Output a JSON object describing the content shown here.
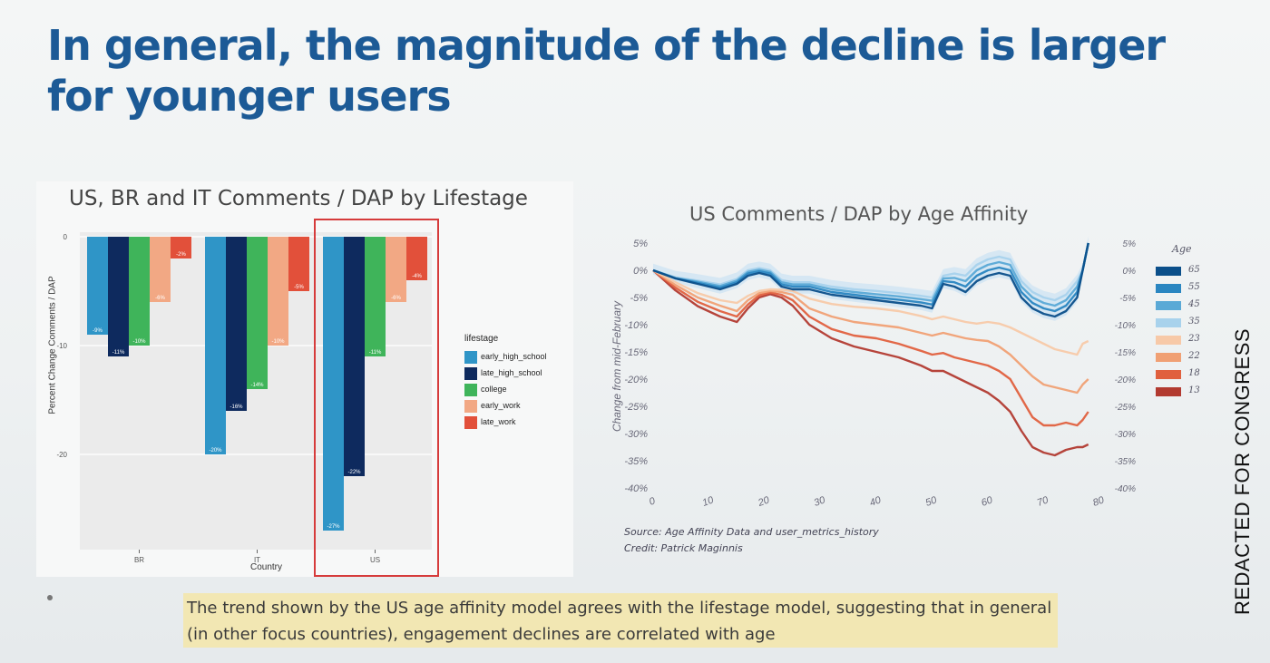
{
  "slide": {
    "title": "In general, the magnitude of the decline is larger for younger users",
    "caption": "The trend shown by the US age affinity model agrees with the lifestage model, suggesting that in general (in other focus countries), engagement declines are correlated with age",
    "watermark": "REDACTED FOR CONGRESS"
  },
  "chart_data": [
    {
      "type": "bar",
      "title": "US, BR and IT Comments / DAP by Lifestage",
      "xlabel": "Country",
      "ylabel": "Percent Change Comments / DAP",
      "categories": [
        "BR",
        "IT",
        "US"
      ],
      "ylim": [
        -27.5,
        0
      ],
      "yticks": [
        0,
        -10,
        -20
      ],
      "legend_title": "lifestage",
      "series": [
        {
          "name": "early_high_school",
          "color": "#2f95c7",
          "values": [
            -9,
            -20,
            -27
          ],
          "labels": [
            "-9%",
            "-20%",
            "-27%"
          ]
        },
        {
          "name": "late_high_school",
          "color": "#0e2a5e",
          "values": [
            -11,
            -16,
            -22
          ],
          "labels": [
            "-11%",
            "-16%",
            "-22%"
          ]
        },
        {
          "name": "college",
          "color": "#3fb45a",
          "values": [
            -10,
            -14,
            -11
          ],
          "labels": [
            "-10%",
            "-14%",
            "-11%"
          ]
        },
        {
          "name": "early_work",
          "color": "#f2a884",
          "values": [
            -6,
            -10,
            -6
          ],
          "labels": [
            "-6%",
            "-10%",
            "-6%"
          ]
        },
        {
          "name": "late_work",
          "color": "#e2503a",
          "values": [
            -2,
            -5,
            -4
          ],
          "labels": [
            "-2%",
            "-5%",
            "-4%"
          ]
        }
      ],
      "highlight": "US"
    },
    {
      "type": "line",
      "title": "US Comments / DAP by Age Affinity",
      "ylabel": "Change from mid-February",
      "xlim": [
        0,
        80
      ],
      "ylim": [
        -40,
        5
      ],
      "xticks": [
        "0",
        "10",
        "20",
        "30",
        "40",
        "50",
        "60",
        "70",
        "80"
      ],
      "yticks": [
        "5%",
        "0%",
        "-5%",
        "-10%",
        "-15%",
        "-20%",
        "-25%",
        "-30%",
        "-35%",
        "-40%"
      ],
      "legend_title": "Age",
      "x": [
        0,
        4,
        8,
        12,
        15,
        17,
        19,
        21,
        23,
        25,
        28,
        32,
        36,
        40,
        44,
        48,
        50,
        52,
        54,
        56,
        58,
        60,
        62,
        64,
        66,
        68,
        70,
        72,
        74,
        76,
        77,
        78
      ],
      "series": [
        {
          "name": "65",
          "color": "#0b4f8a",
          "values": [
            0,
            -1.5,
            -2.5,
            -3.5,
            -2.5,
            -1,
            -0.5,
            -1,
            -3,
            -3.5,
            -3.5,
            -4.5,
            -5,
            -5.5,
            -6,
            -6.5,
            -7,
            -2.5,
            -3,
            -4,
            -2,
            -1,
            -0.5,
            -1,
            -5,
            -7,
            -8,
            -8.5,
            -7.5,
            -5,
            0,
            5
          ]
        },
        {
          "name": "55",
          "color": "#2a86c1",
          "values": [
            0,
            -1.5,
            -2.3,
            -3.2,
            -2.2,
            -0.6,
            -0.2,
            -0.6,
            -2.6,
            -3,
            -3,
            -4,
            -4.5,
            -5,
            -5.4,
            -5.9,
            -6.3,
            -2,
            -2.2,
            -3,
            -1,
            0,
            0.5,
            0,
            -4,
            -6,
            -7,
            -7.5,
            -6.5,
            -4,
            0,
            5
          ]
        },
        {
          "name": "45",
          "color": "#5aa9d6",
          "values": [
            0,
            -1.4,
            -2.1,
            -2.9,
            -1.9,
            -0.3,
            0.1,
            -0.3,
            -2.2,
            -2.6,
            -2.6,
            -3.5,
            -4,
            -4.4,
            -4.8,
            -5.3,
            -5.6,
            -1.5,
            -1.4,
            -2,
            0,
            1,
            1.5,
            1,
            -3,
            -5,
            -6,
            -6.5,
            -5.5,
            -3,
            0,
            5
          ]
        },
        {
          "name": "35",
          "color": "#a8d2ec",
          "values": [
            0,
            -1.3,
            -1.9,
            -2.6,
            -1.6,
            0,
            0.4,
            0,
            -1.8,
            -2.2,
            -2.2,
            -3,
            -3.5,
            -3.8,
            -4.2,
            -4.7,
            -5,
            -1,
            -0.6,
            -1,
            1,
            2,
            2.5,
            2,
            -2,
            -4,
            -5,
            -5.5,
            -4.5,
            -2,
            0,
            5
          ]
        },
        {
          "name": "23",
          "color": "#f7c9a8",
          "values": [
            0,
            -2.2,
            -4.2,
            -5.5,
            -6,
            -4.7,
            -3.8,
            -3.5,
            -3.6,
            -3.8,
            -5.2,
            -6.2,
            -6.7,
            -7,
            -7.5,
            -8.4,
            -9,
            -8.5,
            -9,
            -9.5,
            -9.8,
            -9.5,
            -9.8,
            -10.5,
            -11.5,
            -12.5,
            -13.5,
            -14.5,
            -15,
            -15.5,
            -13.5,
            -13
          ]
        },
        {
          "name": "22",
          "color": "#f0a074",
          "values": [
            0,
            -2.7,
            -5,
            -6.5,
            -7.5,
            -5.5,
            -4.2,
            -3.8,
            -4,
            -4.5,
            -7,
            -8.5,
            -9.5,
            -10,
            -10.5,
            -11.5,
            -12,
            -11.5,
            -12,
            -12.5,
            -12.8,
            -13,
            -14,
            -15.5,
            -17.5,
            -19.5,
            -21,
            -21.5,
            -22,
            -22.5,
            -21,
            -20
          ]
        },
        {
          "name": "18",
          "color": "#e0603e",
          "values": [
            0,
            -3.2,
            -5.8,
            -7.5,
            -8.5,
            -6.3,
            -4.6,
            -4.1,
            -4.5,
            -5.5,
            -8.5,
            -10.8,
            -12,
            -12.5,
            -13.5,
            -14.8,
            -15.5,
            -15.2,
            -16,
            -16.5,
            -17,
            -17.5,
            -18.5,
            -20,
            -23.5,
            -27,
            -28.5,
            -28.5,
            -28,
            -28.5,
            -27.5,
            -26
          ]
        },
        {
          "name": "13",
          "color": "#b23a30",
          "values": [
            0,
            -3.7,
            -6.6,
            -8.5,
            -9.5,
            -7,
            -5,
            -4.4,
            -5,
            -6.5,
            -10,
            -12.5,
            -14,
            -15,
            -16,
            -17.5,
            -18.5,
            -18.5,
            -19.5,
            -20.5,
            -21.5,
            -22.5,
            -24,
            -26,
            -29.5,
            -32.5,
            -33.5,
            -34,
            -33,
            -32.5,
            -32.5,
            -32
          ]
        }
      ],
      "source": "Source: Age Affinity Data and user_metrics_history",
      "credit": "Credit: Patrick Maginnis"
    }
  ]
}
